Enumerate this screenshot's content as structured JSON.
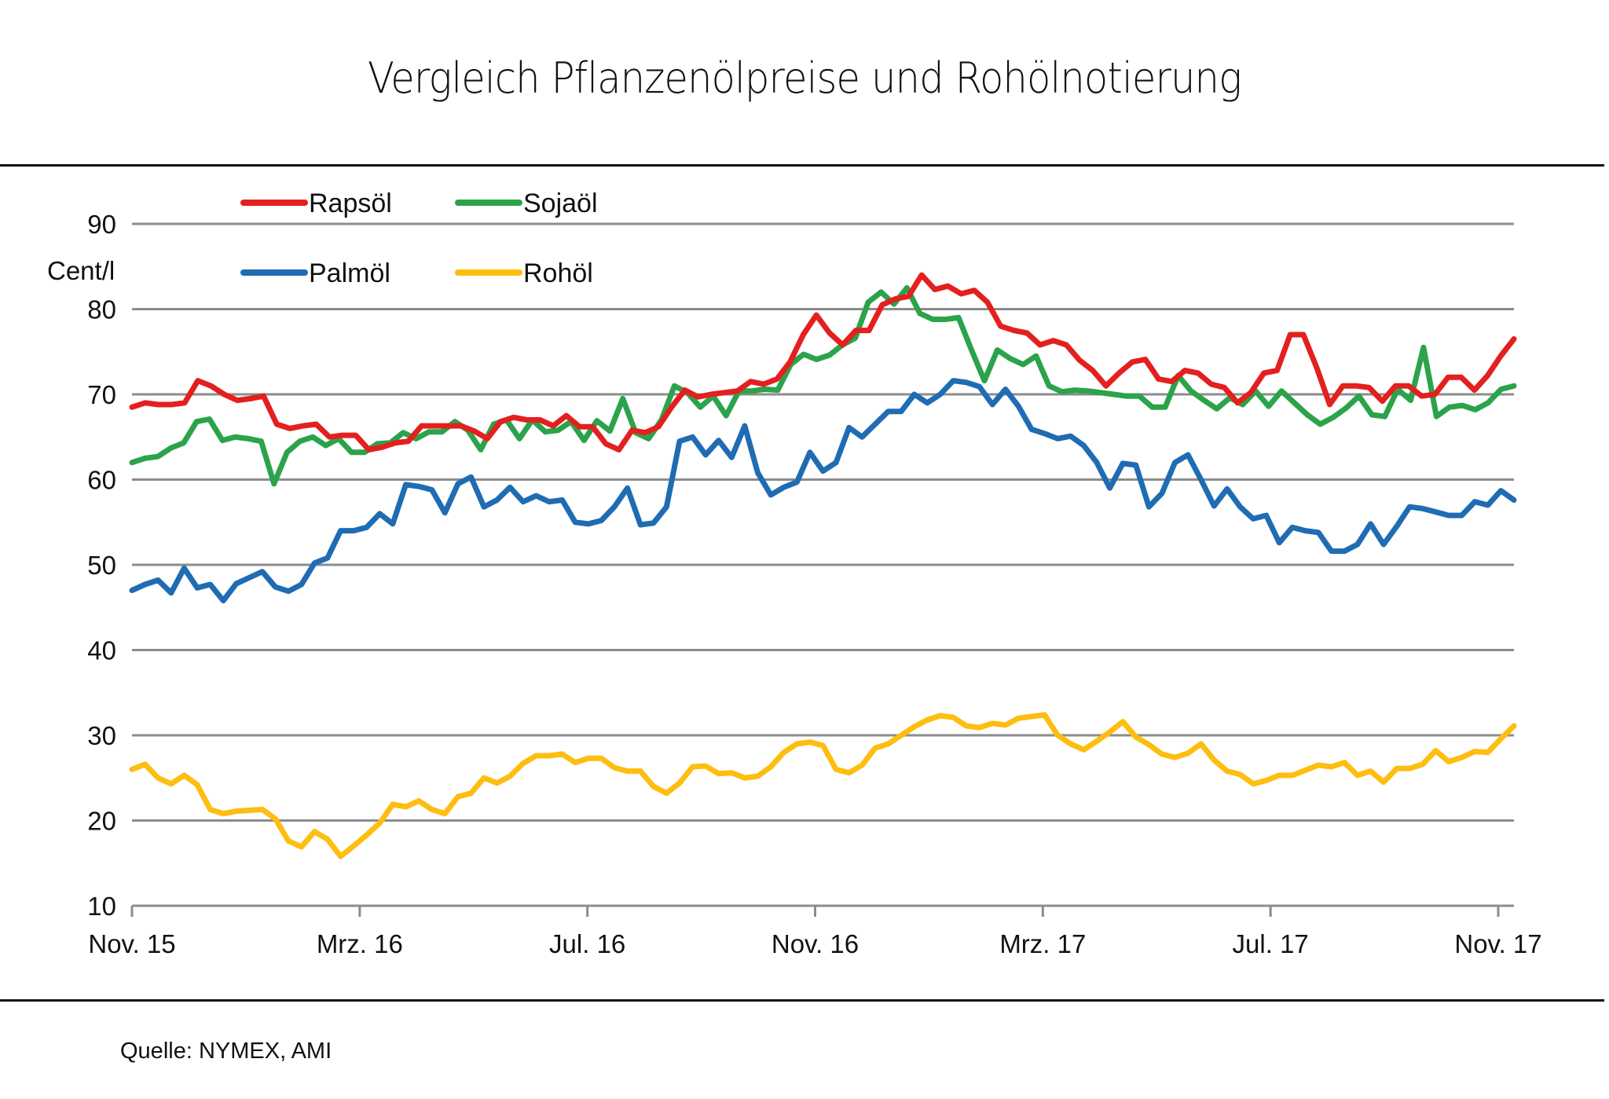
{
  "chart_data": {
    "type": "line",
    "title": "Vergleich Pflanzenölpreise  und Rohölnotierung",
    "ylabel": "Cent/l",
    "xlabel": "",
    "ylim": [
      10,
      90
    ],
    "yticks": [
      90,
      80,
      70,
      60,
      50,
      40,
      30,
      20,
      10
    ],
    "xlim_months": [
      0,
      24.6
    ],
    "xticks": [
      {
        "label": "Nov. 15",
        "month": 0
      },
      {
        "label": "Mrz. 16",
        "month": 4
      },
      {
        "label": "Jul. 16",
        "month": 8
      },
      {
        "label": "Nov. 16",
        "month": 12
      },
      {
        "label": "Mrz. 17",
        "month": 16
      },
      {
        "label": "Jul. 17",
        "month": 20
      },
      {
        "label": "Nov. 17",
        "month": 24
      }
    ],
    "frequency": "weekly",
    "grid": true,
    "legend": [
      {
        "label": "Rapsöl",
        "color": "#E3201F"
      },
      {
        "label": "Sojaöl",
        "color": "#2BA34A"
      },
      {
        "label": "Palmöl",
        "color": "#1F6CB3"
      },
      {
        "label": "Rohöl",
        "color": "#FDBE10"
      }
    ],
    "series": [
      {
        "name": "Rapsöl",
        "color": "#E3201F",
        "values": [
          68.5,
          69,
          68.8,
          68.8,
          69,
          71.6,
          71,
          70,
          69.3,
          69.5,
          69.8,
          66.5,
          66,
          66.3,
          66.5,
          65,
          65.2,
          65.2,
          63.5,
          63.8,
          64.3,
          64.5,
          66.3,
          66.3,
          66.3,
          66.3,
          65.7,
          64.8,
          66.8,
          67.3,
          67,
          67,
          66.3,
          67.5,
          66.2,
          66.2,
          64.2,
          63.5,
          65.8,
          65.5,
          66.2,
          68.5,
          70.5,
          69.7,
          70,
          70.2,
          70.4,
          71.5,
          71.2,
          71.8,
          73.8,
          77,
          79.3,
          77.2,
          75.8,
          77.5,
          77.5,
          80.5,
          81.2,
          81.5,
          84,
          82.3,
          82.7,
          81.8,
          82.2,
          80.8,
          78,
          77.5,
          77.2,
          75.8,
          76.3,
          75.8,
          74,
          72.8,
          71,
          72.5,
          73.8,
          74.1,
          71.8,
          71.5,
          72.8,
          72.5,
          71.2,
          70.8,
          69,
          70.2,
          72.5,
          72.8,
          77,
          77,
          73.2,
          68.8,
          71,
          71,
          70.8,
          69.2,
          71,
          71,
          69.8,
          70,
          72,
          72,
          70.5,
          72.2,
          74.5,
          76.5
        ]
      },
      {
        "name": "Sojaöl",
        "color": "#2BA34A",
        "values": [
          62,
          62.5,
          62.7,
          63.7,
          64.3,
          66.8,
          67.1,
          64.6,
          65,
          64.8,
          64.5,
          59.5,
          63.2,
          64.5,
          65,
          64,
          64.8,
          63.2,
          63.2,
          64.2,
          64.3,
          65.5,
          64.8,
          65.6,
          65.6,
          66.8,
          65.8,
          63.5,
          66.5,
          67,
          64.8,
          67,
          65.6,
          65.8,
          66.8,
          64.6,
          66.9,
          65.7,
          69.5,
          65.5,
          64.8,
          67,
          71,
          70.2,
          68.5,
          69.8,
          67.5,
          70.4,
          70.4,
          70.6,
          70.5,
          73.5,
          74.7,
          74.1,
          74.6,
          75.8,
          76.6,
          80.8,
          82,
          80.6,
          82.5,
          79.5,
          78.8,
          78.8,
          79,
          75.2,
          71.6,
          75.2,
          74.2,
          73.5,
          74.5,
          71,
          70.3,
          70.5,
          70.4,
          70.2,
          70,
          69.8,
          69.8,
          68.5,
          68.5,
          72.2,
          70.4,
          69.3,
          68.3,
          69.6,
          68.8,
          70.4,
          68.6,
          70.4,
          69,
          67.6,
          66.5,
          67.3,
          68.4,
          69.8,
          67.6,
          67.4,
          70.6,
          69.3,
          75.5,
          67.4,
          68.5,
          68.7,
          68.2,
          69,
          70.6,
          71
        ]
      },
      {
        "name": "Palmöl",
        "color": "#1F6CB3",
        "values": [
          47,
          47.7,
          48.2,
          46.7,
          49.6,
          47.3,
          47.7,
          45.8,
          47.8,
          48.5,
          49.2,
          47.4,
          46.9,
          47.7,
          50.2,
          50.8,
          54,
          54,
          54.4,
          56,
          54.8,
          59.4,
          59.2,
          58.8,
          56.1,
          59.5,
          60.3,
          56.8,
          57.6,
          59.1,
          57.4,
          58.1,
          57.4,
          57.6,
          55,
          54.8,
          55.2,
          56.8,
          59,
          54.7,
          54.9,
          56.8,
          64.5,
          65,
          62.9,
          64.6,
          62.6,
          66.3,
          60.8,
          58.2,
          59.1,
          59.7,
          63.2,
          61,
          62,
          66.1,
          65,
          66.5,
          68,
          68,
          70,
          69,
          70,
          71.6,
          71.4,
          70.9,
          68.8,
          70.6,
          68.6,
          65.9,
          65.4,
          64.8,
          65.1,
          64,
          62,
          59,
          61.9,
          61.7,
          56.8,
          58.4,
          62,
          62.9,
          60,
          56.9,
          58.9,
          56.8,
          55.4,
          55.8,
          52.6,
          54.4,
          54,
          53.8,
          51.6,
          51.6,
          52.4,
          54.8,
          52.4,
          54.5,
          56.8,
          56.6,
          56.2,
          55.8,
          55.8,
          57.4,
          57,
          58.7,
          57.6
        ]
      },
      {
        "name": "Rohöl",
        "color": "#FDBE10",
        "values": [
          26,
          26.6,
          25,
          24.3,
          25.3,
          24.2,
          21.3,
          20.8,
          21.1,
          21.2,
          21.3,
          20.2,
          17.6,
          16.9,
          18.7,
          17.8,
          15.8,
          17,
          18.3,
          19.7,
          21.9,
          21.6,
          22.3,
          21.3,
          20.8,
          22.8,
          23.2,
          25,
          24.4,
          25.2,
          26.7,
          27.6,
          27.6,
          27.8,
          26.8,
          27.3,
          27.3,
          26.2,
          25.8,
          25.8,
          24,
          23.2,
          24.4,
          26.3,
          26.4,
          25.5,
          25.6,
          25,
          25.2,
          26.3,
          28,
          29,
          29.2,
          28.8,
          26,
          25.6,
          26.5,
          28.5,
          29,
          30,
          31,
          31.8,
          32.3,
          32.1,
          31.1,
          30.9,
          31.4,
          31.2,
          32,
          32.2,
          32.4,
          30,
          29,
          28.3,
          29.3,
          30.4,
          31.6,
          29.8,
          28.9,
          27.8,
          27.4,
          27.9,
          29,
          27.1,
          25.8,
          25.4,
          24.3,
          24.7,
          25.3,
          25.3,
          25.9,
          26.5,
          26.3,
          26.8,
          25.3,
          25.8,
          24.5,
          26.1,
          26.1,
          26.6,
          28.2,
          26.9,
          27.4,
          28.1,
          28,
          29.6,
          31.1
        ]
      }
    ]
  },
  "footer": {
    "source": "Quelle:  NYMEX, AMI"
  }
}
